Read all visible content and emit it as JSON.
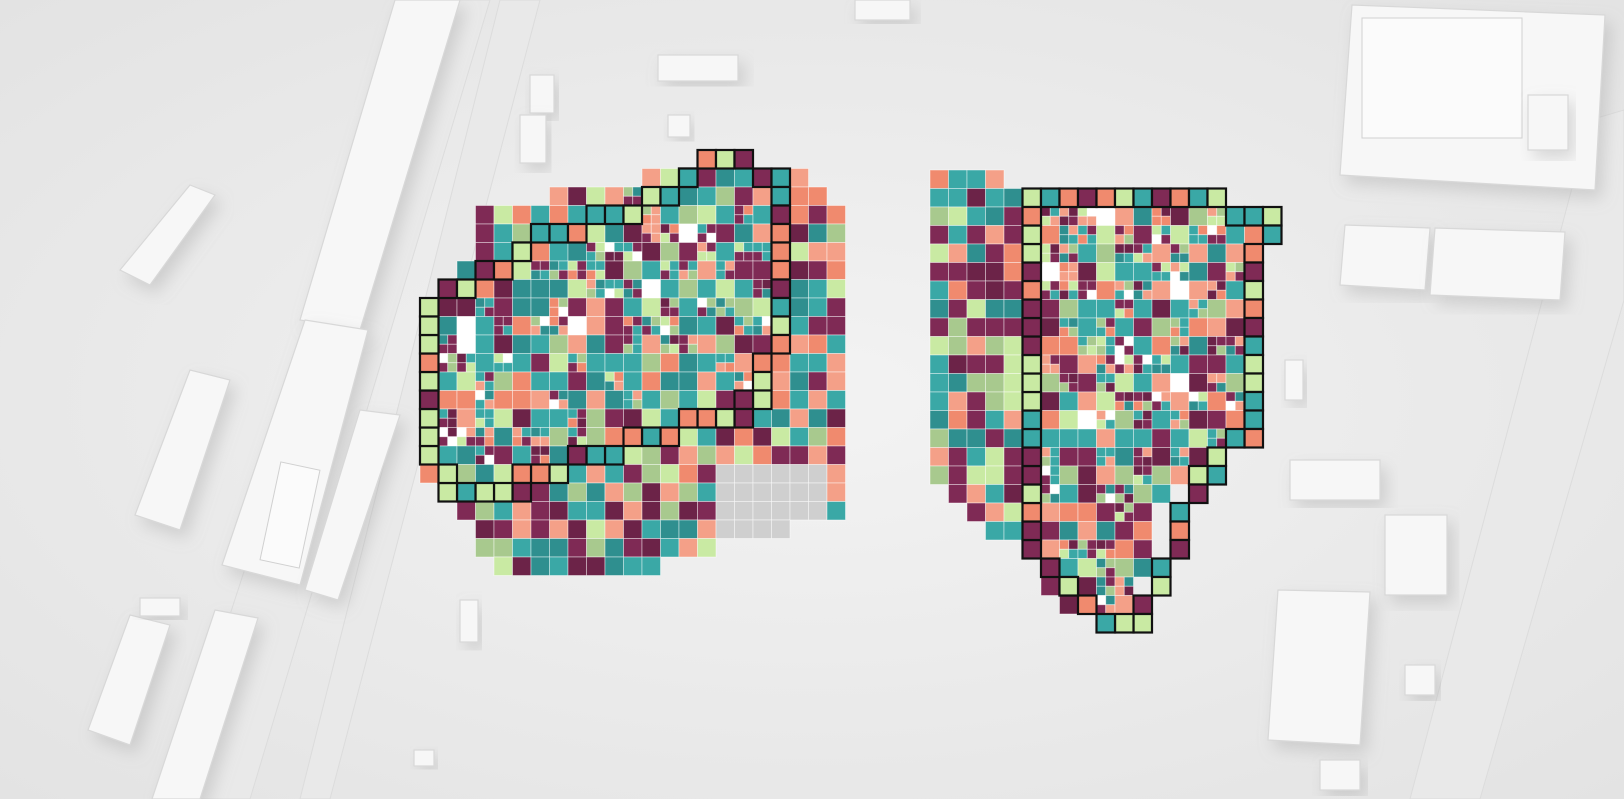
{
  "scene": {
    "palette": {
      "background": "#efefef",
      "teal": "#3aa8a6",
      "teal_dark": "#2f8f8f",
      "salmon": "#f08a6e",
      "salmon_light": "#f4a088",
      "plum": "#7f2a55",
      "plum_dark": "#6c2348",
      "sage": "#a8c98e",
      "lime": "#c9eaa3",
      "white": "#ffffff",
      "outline": "#111111"
    },
    "plots": [
      {
        "id": "left-plot",
        "seed": 7
      },
      {
        "id": "right-plot",
        "seed": 19
      }
    ]
  }
}
